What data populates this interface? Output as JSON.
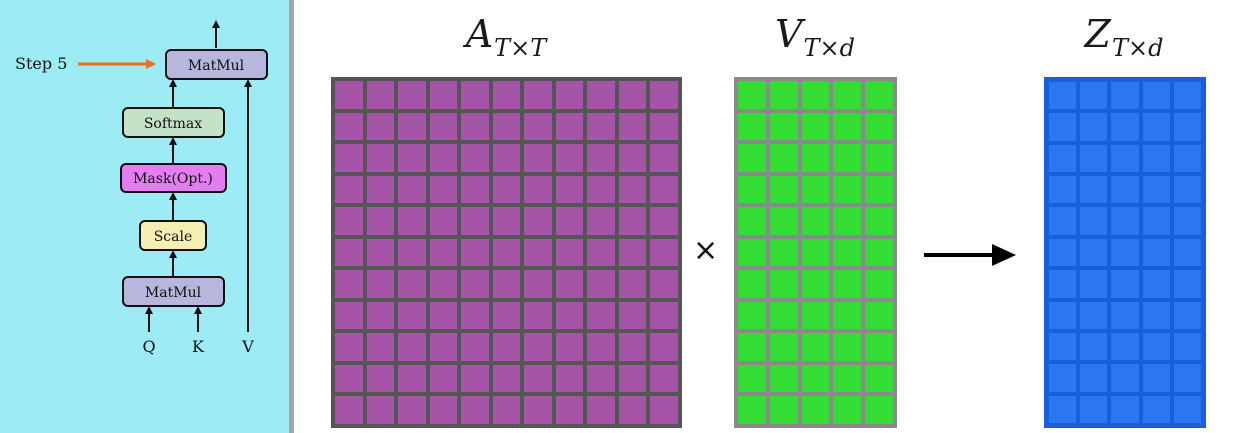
{
  "colors": {
    "left_panel_bg": "#9debf4",
    "box_matmul": "#b8b6dc",
    "box_softmax": "#c4e2c8",
    "box_mask": "#e37ef0",
    "box_scale": "#f5efb4",
    "step_arrow": "#e8731e",
    "matrix_a_fill": "#a654a8",
    "matrix_a_grid": "#555555",
    "matrix_v_fill": "#33dd33",
    "matrix_v_grid": "#8a8a8a",
    "matrix_z_fill": "#2b77f1",
    "matrix_z_grid": "#1a5fd9"
  },
  "attention_block": {
    "step_label": "Step 5",
    "top_matmul": "MatMul",
    "softmax": "Softmax",
    "mask": "Mask(Opt.)",
    "scale": "Scale",
    "bottom_matmul": "MatMul",
    "input_q": "Q",
    "input_k": "K",
    "input_v": "V"
  },
  "matrices": {
    "a": {
      "symbol": "A",
      "subscript": "T×T",
      "rows": 11,
      "cols": 11
    },
    "v": {
      "symbol": "V",
      "subscript": "T×d",
      "rows": 11,
      "cols": 5
    },
    "z": {
      "symbol": "Z",
      "subscript": "T×d",
      "rows": 11,
      "cols": 5
    }
  },
  "operator": "×"
}
